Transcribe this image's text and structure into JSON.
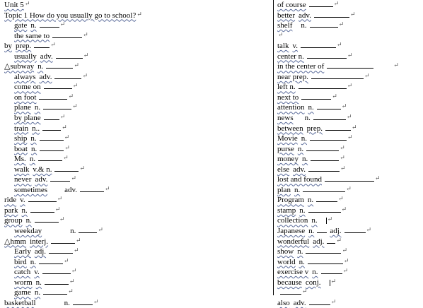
{
  "para_mark": "↵",
  "left": [
    {
      "indent": 0,
      "parts": [
        "Unit 5"
      ],
      "blank": 0
    },
    {
      "indent": 0,
      "parts": [
        "Topic 1 How do you usually go to school?"
      ],
      "blank": 0,
      "bold_q": true
    },
    {
      "indent": 14,
      "parts": [
        "gate",
        "n."
      ],
      "blank": 28
    },
    {
      "indent": 14,
      "parts": [
        "the same to"
      ],
      "blank": 42
    },
    {
      "indent": 0,
      "parts": [
        "by",
        "prep."
      ],
      "blank": 22
    },
    {
      "indent": 14,
      "parts": [
        "usually",
        "adv."
      ],
      "blank": 38
    },
    {
      "indent": 0,
      "parts": [
        "△subway",
        "n."
      ],
      "blank": 38
    },
    {
      "indent": 14,
      "parts": [
        "always",
        "adv."
      ],
      "blank": 38
    },
    {
      "indent": 14,
      "parts": [
        "come on"
      ],
      "blank": 40
    },
    {
      "indent": 14,
      "parts": [
        "on foot"
      ],
      "blank": 40
    },
    {
      "indent": 14,
      "parts": [
        "plane",
        "n."
      ],
      "blank": 40
    },
    {
      "indent": 14,
      "parts": [
        "by plane"
      ],
      "blank": 22
    },
    {
      "indent": 14,
      "parts": [
        "train",
        "n.."
      ],
      "blank": 26
    },
    {
      "indent": 14,
      "parts": [
        "ship",
        "n."
      ],
      "blank": 34
    },
    {
      "indent": 14,
      "parts": [
        "boat",
        "n."
      ],
      "blank": 34
    },
    {
      "indent": 14,
      "parts": [
        "Ms.",
        "n."
      ],
      "blank": 34
    },
    {
      "indent": 14,
      "parts": [
        "walk",
        "v.& n."
      ],
      "blank": 34
    },
    {
      "indent": 14,
      "parts": [
        "never",
        "adv."
      ],
      "blank": 28
    },
    {
      "indent": 14,
      "parts": [
        "sometimes"
      ],
      "gap": 24,
      "extra": "adv.",
      "blank": 34
    },
    {
      "indent": 0,
      "parts": [
        "ride",
        "v."
      ],
      "blank": 40
    },
    {
      "indent": 0,
      "parts": [
        "park",
        "n."
      ],
      "blank": 34
    },
    {
      "indent": 0,
      "parts": [
        "group",
        "n."
      ],
      "blank": 34
    },
    {
      "indent": 14,
      "parts": [
        "weekday"
      ],
      "gap": 40,
      "extra": "n.",
      "blank": 26
    },
    {
      "indent": 0,
      "parts": [
        "△hmm",
        "interj."
      ],
      "blank": 34
    },
    {
      "indent": 14,
      "parts": [
        "Early",
        "adj."
      ],
      "blank": 34
    },
    {
      "indent": 14,
      "parts": [
        "bird",
        "n."
      ],
      "blank": 34
    },
    {
      "indent": 14,
      "parts": [
        "catch",
        "v."
      ],
      "blank": 40
    },
    {
      "indent": 14,
      "parts": [
        "worm",
        "n."
      ],
      "blank": 34
    },
    {
      "indent": 14,
      "parts": [
        "game",
        "n."
      ],
      "blank": 34
    },
    {
      "indent": 0,
      "parts": [
        "basketball"
      ],
      "gap": 40,
      "extra": "n.",
      "blank": 28
    }
  ],
  "right": [
    {
      "indent": 0,
      "parts": [
        "of course"
      ],
      "blank": 34
    },
    {
      "indent": 0,
      "parts": [
        "better",
        "adv."
      ],
      "blank": 50
    },
    {
      "indent": 0,
      "parts": [
        "shelf"
      ],
      "gap": 12,
      "extra": "n.",
      "blank": 40
    },
    {
      "indent": 0,
      "parts": [],
      "blank": 0,
      "mark_only": true
    },
    {
      "indent": 0,
      "parts": [
        "talk",
        "v."
      ],
      "blank": 50
    },
    {
      "indent": 0,
      "parts": [
        "center n."
      ],
      "blank": 56
    },
    {
      "indent": 0,
      "parts": [
        "in the center of"
      ],
      "blank": 66,
      "far_mark": true
    },
    {
      "indent": 0,
      "parts": [
        "near prep."
      ],
      "blank": 74
    },
    {
      "indent": 0,
      "parts": [
        "left n."
      ],
      "blank": 68
    },
    {
      "indent": 0,
      "parts": [
        "next to"
      ],
      "blank": 42
    },
    {
      "indent": 0,
      "parts": [
        "attention",
        "n."
      ],
      "blank": 34
    },
    {
      "indent": 0,
      "parts": [
        "news"
      ],
      "gap": 16,
      "extra": "n.",
      "blank": 46
    },
    {
      "indent": 0,
      "parts": [
        "between",
        "prep."
      ],
      "blank": 36
    },
    {
      "indent": 0,
      "parts": [
        "Movie",
        "n."
      ],
      "blank": 52
    },
    {
      "indent": 0,
      "parts": [
        "purse",
        "n."
      ],
      "blank": 46
    },
    {
      "indent": 0,
      "parts": [
        "money",
        "n."
      ],
      "blank": 40
    },
    {
      "indent": 0,
      "parts": [
        "else",
        "adv."
      ],
      "blank": 44
    },
    {
      "indent": 0,
      "parts": [
        "lost and found"
      ],
      "blank": 70
    },
    {
      "indent": 0,
      "parts": [
        "plan",
        "n."
      ],
      "blank": 60
    },
    {
      "indent": 0,
      "parts": [
        "Program",
        "n."
      ],
      "blank": 30
    },
    {
      "indent": 0,
      "parts": [
        "stamp",
        "n."
      ],
      "blank": 46
    },
    {
      "indent": 0,
      "parts": [
        "collection",
        "n."
      ],
      "blank": 0,
      "bar": true
    },
    {
      "indent": 0,
      "parts": [
        "Japanese",
        "n."
      ],
      "blank": 14,
      "extra2": "adj.",
      "blank2": 30
    },
    {
      "indent": 0,
      "parts": [
        "wonderful",
        "adj."
      ],
      "blank": 12
    },
    {
      "indent": 0,
      "parts": [
        "show",
        "n."
      ],
      "blank": 50
    },
    {
      "indent": 0,
      "parts": [
        "world",
        "n."
      ],
      "blank": 50
    },
    {
      "indent": 0,
      "parts": [
        "exercise v",
        "n."
      ],
      "blank": 30
    },
    {
      "indent": 0,
      "parts": [
        "because",
        "conj."
      ],
      "blank": 0,
      "bar": true
    },
    {
      "indent": 0,
      "parts": [],
      "blank": 30,
      "blank_only": true
    },
    {
      "indent": 0,
      "parts": [
        "also",
        "adv."
      ],
      "blank": 30
    }
  ]
}
